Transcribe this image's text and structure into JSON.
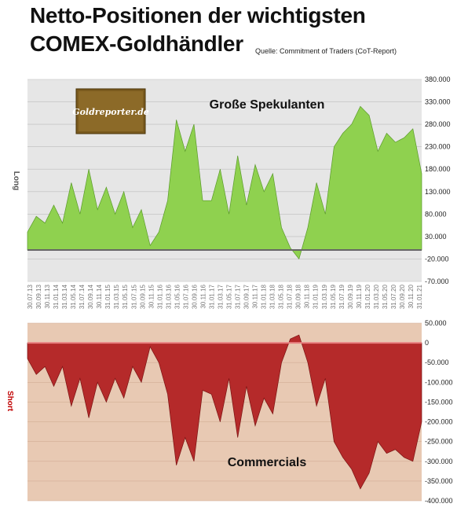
{
  "title_line1": "Netto-Positionen der wichtigsten",
  "title_line2": "COMEX-Goldhändler",
  "source": "Quelle: Commitment of Traders (CoT-Report)",
  "logo_text": "Goldreporter.de",
  "colors": {
    "long_fill": "#8fd14f",
    "short_fill": "#b52a2a",
    "top_bg": "#e6e6e6",
    "bottom_bg": "#e8c9b3"
  },
  "chart_data": [
    {
      "type": "area",
      "ylabel": "Long",
      "annotation": "Große Spekulanten",
      "ylim": [
        -70000,
        380000
      ],
      "yticks": [
        "380.000",
        "330.000",
        "280.000",
        "230.000",
        "180.000",
        "130.000",
        "80.000",
        "30.000",
        "-20.000",
        "-70.000"
      ],
      "xticks": [
        "30.07.13",
        "30.09.13",
        "30.11.13",
        "31.01.14",
        "31.03.14",
        "31.05.14",
        "31.07.14",
        "30.09.14",
        "30.11.14",
        "31.01.15",
        "31.03.15",
        "31.05.15",
        "31.07.15",
        "30.09.15",
        "30.11.15",
        "31.01.16",
        "31.03.16",
        "31.05.16",
        "31.07.16",
        "30.09.16",
        "30.11.16",
        "31.01.17",
        "31.03.17",
        "31.05.17",
        "31.07.17",
        "30.09.17",
        "30.11.17",
        "31.01.18",
        "31.03.18",
        "31.05.18",
        "31.07.18",
        "30.09.18",
        "30.11.18",
        "31.01.19",
        "31.03.19",
        "31.05.19",
        "31.07.19",
        "30.09.19",
        "30.11.19",
        "31.01.20",
        "31.03.20",
        "31.05.20",
        "31.07.20",
        "30.09.20",
        "30.11.20",
        "31.01.21"
      ],
      "x": [
        "2013-07",
        "2013-09",
        "2013-11",
        "2014-01",
        "2014-03",
        "2014-05",
        "2014-07",
        "2014-09",
        "2014-11",
        "2015-01",
        "2015-03",
        "2015-05",
        "2015-07",
        "2015-09",
        "2015-11",
        "2016-01",
        "2016-03",
        "2016-05",
        "2016-07",
        "2016-09",
        "2016-11",
        "2017-01",
        "2017-03",
        "2017-05",
        "2017-07",
        "2017-09",
        "2017-11",
        "2018-01",
        "2018-03",
        "2018-05",
        "2018-07",
        "2018-09",
        "2018-11",
        "2019-01",
        "2019-03",
        "2019-05",
        "2019-07",
        "2019-09",
        "2019-11",
        "2020-01",
        "2020-03",
        "2020-05",
        "2020-07",
        "2020-09",
        "2020-11",
        "2021-01"
      ],
      "values": [
        40000,
        75000,
        60000,
        100000,
        60000,
        150000,
        80000,
        180000,
        90000,
        140000,
        80000,
        130000,
        50000,
        90000,
        10000,
        40000,
        110000,
        290000,
        220000,
        280000,
        110000,
        110000,
        180000,
        80000,
        210000,
        100000,
        190000,
        130000,
        170000,
        50000,
        5000,
        -20000,
        50000,
        150000,
        80000,
        230000,
        260000,
        280000,
        320000,
        300000,
        220000,
        260000,
        240000,
        250000,
        270000,
        170000
      ]
    },
    {
      "type": "area",
      "ylabel": "Short",
      "annotation": "Commercials",
      "ylim": [
        -400000,
        50000
      ],
      "yticks": [
        "50.000",
        "0",
        "-50.000",
        "-100.000",
        "-150.000",
        "-200.000",
        "-250.000",
        "-300.000",
        "-350.000",
        "-400.000"
      ],
      "x": [
        "2013-07",
        "2013-09",
        "2013-11",
        "2014-01",
        "2014-03",
        "2014-05",
        "2014-07",
        "2014-09",
        "2014-11",
        "2015-01",
        "2015-03",
        "2015-05",
        "2015-07",
        "2015-09",
        "2015-11",
        "2016-01",
        "2016-03",
        "2016-05",
        "2016-07",
        "2016-09",
        "2016-11",
        "2017-01",
        "2017-03",
        "2017-05",
        "2017-07",
        "2017-09",
        "2017-11",
        "2018-01",
        "2018-03",
        "2018-05",
        "2018-07",
        "2018-09",
        "2018-11",
        "2019-01",
        "2019-03",
        "2019-05",
        "2019-07",
        "2019-09",
        "2019-11",
        "2020-01",
        "2020-03",
        "2020-05",
        "2020-07",
        "2020-09",
        "2020-11",
        "2021-01"
      ],
      "values": [
        -40000,
        -80000,
        -60000,
        -110000,
        -60000,
        -160000,
        -90000,
        -190000,
        -100000,
        -150000,
        -90000,
        -140000,
        -60000,
        -100000,
        -10000,
        -50000,
        -130000,
        -310000,
        -240000,
        -300000,
        -120000,
        -130000,
        -200000,
        -90000,
        -240000,
        -110000,
        -210000,
        -140000,
        -180000,
        -50000,
        10000,
        20000,
        -50000,
        -160000,
        -90000,
        -250000,
        -290000,
        -320000,
        -370000,
        -330000,
        -250000,
        -280000,
        -270000,
        -290000,
        -300000,
        -200000
      ]
    }
  ]
}
